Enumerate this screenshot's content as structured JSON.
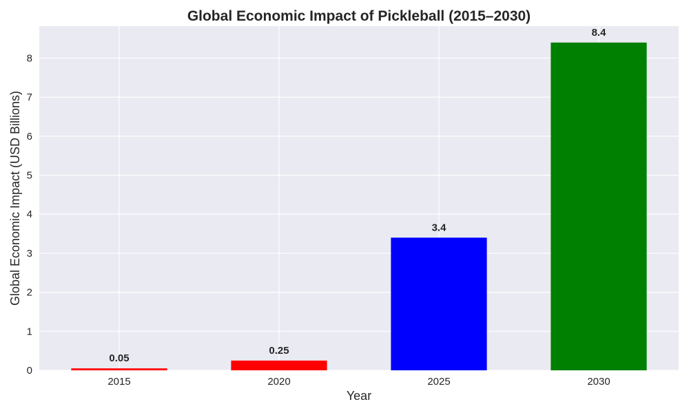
{
  "chart_data": {
    "type": "bar",
    "title": "Global Economic Impact of Pickleball (2015–2030)",
    "xlabel": "Year",
    "ylabel": "Global Economic Impact (USD Billions)",
    "categories": [
      "2015",
      "2020",
      "2025",
      "2030"
    ],
    "values": [
      0.05,
      0.25,
      3.4,
      8.4
    ],
    "value_labels": [
      "0.05",
      "0.25",
      "3.4",
      "8.4"
    ],
    "bar_colors": [
      "#ff0000",
      "#ff0000",
      "#0000ff",
      "#008000"
    ],
    "ylim": [
      0,
      8.82
    ],
    "yticks": [
      0,
      1,
      2,
      3,
      4,
      5,
      6,
      7,
      8
    ],
    "grid": true,
    "background_color": "#eaeaf2",
    "grid_color": "#ffffff"
  }
}
